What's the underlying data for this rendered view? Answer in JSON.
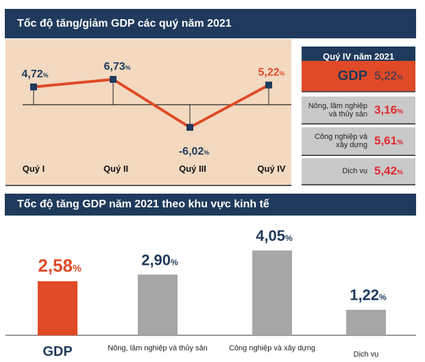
{
  "quarter_section": {
    "title": "Tốc độ tăng/giảm GDP các quý năm 2021"
  },
  "sector_section": {
    "title": "Tốc độ tăng GDP năm 2021 theo khu vực kinh tế"
  },
  "q4_panel": {
    "title": "Quý IV năm 2021",
    "items": [
      {
        "label": "GDP",
        "value": "5,22",
        "unit": "%"
      },
      {
        "label": "Nông, lâm nghiệp và thủy sản",
        "value": "3,16",
        "unit": "%"
      },
      {
        "label": "Công nghiệp và xây dựng",
        "value": "5,61",
        "unit": "%"
      },
      {
        "label": "Dịch vụ",
        "value": "5,42",
        "unit": "%"
      }
    ]
  },
  "chart_data": [
    {
      "type": "line",
      "title": "Tốc độ tăng/giảm GDP các quý năm 2021",
      "categories": [
        "Quý I",
        "Quý II",
        "Quý III",
        "Quý IV"
      ],
      "values": [
        4.72,
        6.73,
        -6.02,
        5.22
      ],
      "labels": [
        "4,72",
        "6,73",
        "-6,02",
        "5,22"
      ],
      "unit": "%",
      "colors": {
        "line": "#e04a26",
        "marker": "#1f3a5c",
        "last_label": "#e04a26"
      }
    },
    {
      "type": "bar",
      "title": "Tốc độ tăng GDP năm 2021 theo khu vực kinh tế",
      "categories": [
        "GDP",
        "Nông, lâm nghiệp và thủy sản",
        "Công nghiệp và xây dựng",
        "Dịch vụ"
      ],
      "values": [
        2.58,
        2.9,
        4.05,
        1.22
      ],
      "labels": [
        "2,58",
        "2,90",
        "4,05",
        "1,22"
      ],
      "unit": "%",
      "colors": {
        "highlight": "#e04a26",
        "bar": "#a6a6a6"
      }
    }
  ],
  "colors": {
    "header": "#1f3a5c",
    "accent": "#e04a26",
    "panel_bg": "#f2d9c0",
    "card_bg": "#c9c9c9",
    "value_red": "#e0282e"
  }
}
